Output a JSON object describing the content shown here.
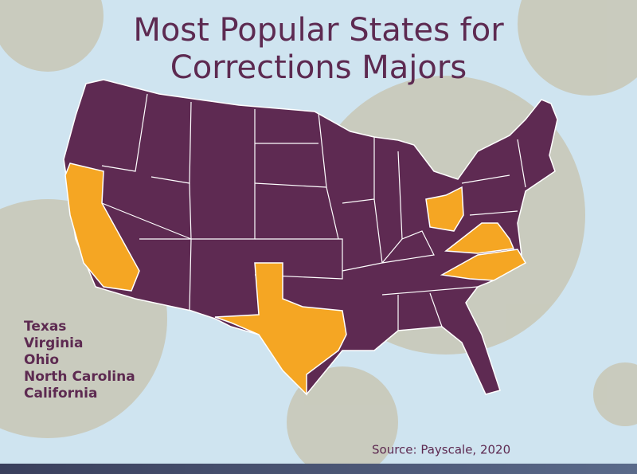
{
  "title": [
    "Most Popular States for",
    "Corrections Majors"
  ],
  "states": [
    "Texas",
    "Virginia",
    "Ohio",
    "North Carolina",
    "California"
  ],
  "source": "Source: Payscale, 2020"
}
